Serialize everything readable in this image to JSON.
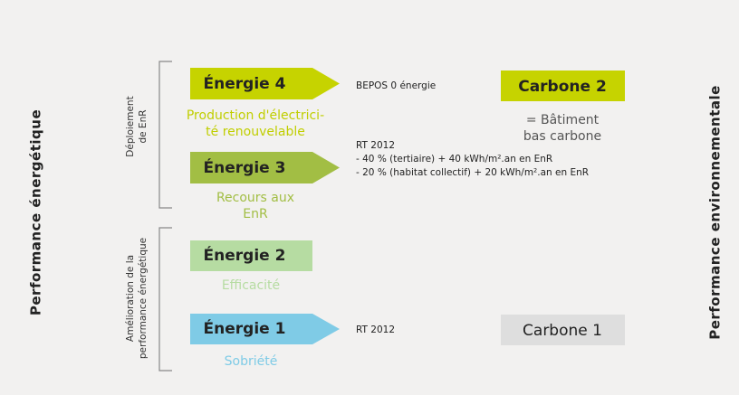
{
  "left_axis": "Performance énergétique",
  "right_axis": "Performance environnementale",
  "groups": [
    {
      "label": [
        "Déploiement",
        "de EnR"
      ]
    },
    {
      "label": [
        "Amélioration de la",
        "performance énergétique"
      ]
    }
  ],
  "levels": [
    {
      "label": "Énergie 4",
      "note": [
        "Production d'électrici-",
        "té renouvelable"
      ]
    },
    {
      "label": "Énergie 3",
      "note": [
        "Recours aux",
        "EnR"
      ]
    },
    {
      "label": "Énergie 2",
      "note": [
        "Efficacité"
      ]
    },
    {
      "label": "Énergie 1",
      "note": [
        "Sobriété"
      ]
    }
  ],
  "requirements": [
    [
      "BEPOS 0 énergie"
    ],
    [
      "RT 2012",
      "- 40 % (tertiaire) + 40 kWh/m².an en EnR",
      "- 20 % (habitat collectif) + 20 kWh/m².an en EnR"
    ],
    [
      "RT 2012"
    ]
  ],
  "carbon": [
    {
      "label": "Carbone 2",
      "note": [
        "= Bâtiment",
        "bas carbone"
      ]
    },
    {
      "label": "Carbone 1"
    }
  ]
}
